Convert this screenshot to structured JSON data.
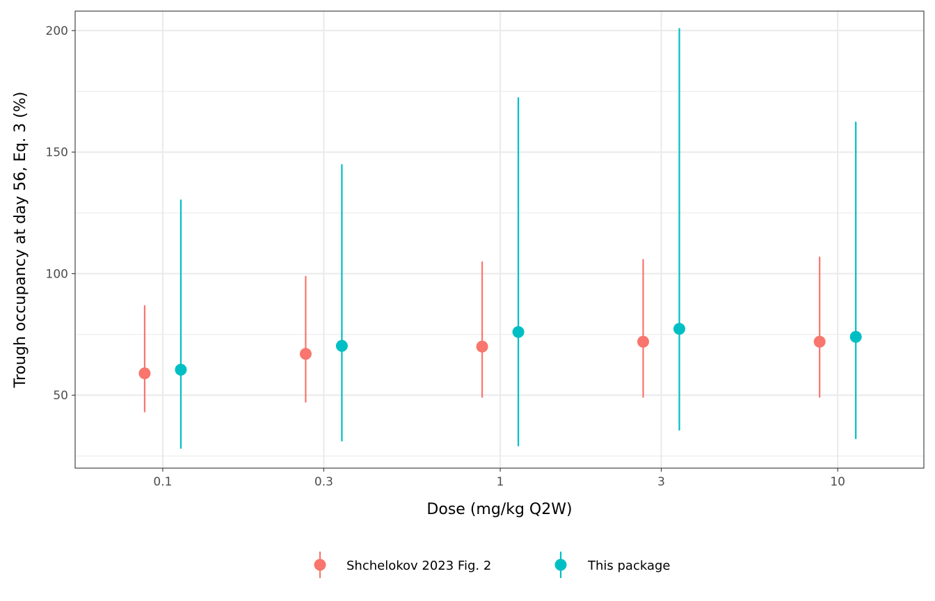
{
  "chart_data": {
    "type": "scatter",
    "xlabel": "Dose (mg/kg Q2W)",
    "ylabel": "Trough occupancy at day 56, Eq. 3 (%)",
    "x_scale": "log10",
    "xlim": [
      0.055,
      18
    ],
    "ylim": [
      20,
      208
    ],
    "x_ticks": [
      {
        "value": 0.1,
        "label": "0.1"
      },
      {
        "value": 0.3,
        "label": "0.3"
      },
      {
        "value": 1,
        "label": "1"
      },
      {
        "value": 3,
        "label": "3"
      },
      {
        "value": 10,
        "label": "10"
      }
    ],
    "y_ticks": [
      {
        "value": 50,
        "label": "50"
      },
      {
        "value": 100,
        "label": "100"
      },
      {
        "value": 150,
        "label": "150"
      },
      {
        "value": 200,
        "label": "200"
      }
    ],
    "y_minor": [
      25,
      75,
      125,
      175
    ],
    "grid": true,
    "legend_position": "bottom",
    "series": [
      {
        "name": "Shchelokov 2023 Fig. 2",
        "color": "#F8766D",
        "points": [
          {
            "dose": 0.1,
            "y": 59,
            "ymin": 43,
            "ymax": 87
          },
          {
            "dose": 0.3,
            "y": 67,
            "ymin": 47,
            "ymax": 99
          },
          {
            "dose": 1,
            "y": 70,
            "ymin": 49,
            "ymax": 105
          },
          {
            "dose": 3,
            "y": 72,
            "ymin": 49,
            "ymax": 106
          },
          {
            "dose": 10,
            "y": 72,
            "ymin": 49,
            "ymax": 107
          }
        ]
      },
      {
        "name": "This package",
        "color": "#00BFC4",
        "points": [
          {
            "dose": 0.1,
            "y": 60.5,
            "ymin": 28,
            "ymax": 130.5
          },
          {
            "dose": 0.3,
            "y": 70.3,
            "ymin": 31,
            "ymax": 145
          },
          {
            "dose": 1,
            "y": 76,
            "ymin": 29,
            "ymax": 172.5
          },
          {
            "dose": 3,
            "y": 77.3,
            "ymin": 35.5,
            "ymax": 201
          },
          {
            "dose": 10,
            "y": 74,
            "ymin": 32,
            "ymax": 162.5
          }
        ]
      }
    ]
  }
}
